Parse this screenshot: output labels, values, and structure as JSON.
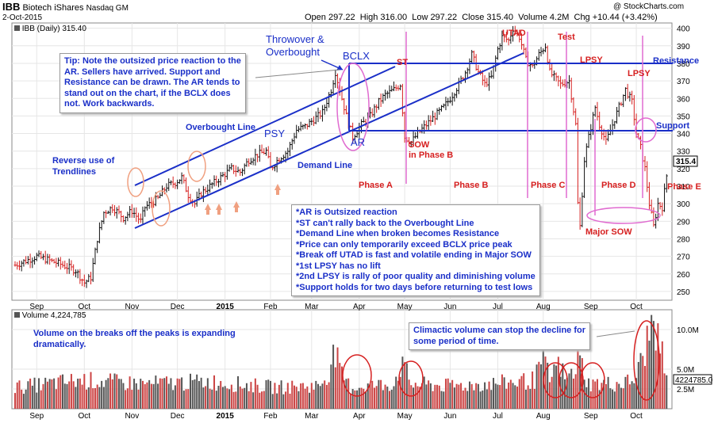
{
  "header": {
    "symbol": "IBB",
    "name": "Biotech iShares",
    "exchange": "Nasdaq GM",
    "date": "2-Oct-2015",
    "watermark": "@ StockCharts.com",
    "open": "Open 297.22",
    "high": "High 316.00",
    "low": "Low 297.22",
    "close": "Close 315.40",
    "volume": "Volume 4.2M",
    "change": "Chg +10.44 (+3.42%)",
    "legend_price": "IBB (Daily) 315.40",
    "legend_volume": "Volume 4,224,785"
  },
  "tip_box": {
    "lines": [
      "Tip: Note the outsized price reaction to the",
      "AR. Sellers have arrived. Support and",
      "Resistance can be drawn. The AR tends to",
      "stand out on the chart, if the BCLX does",
      "not. Work backwards."
    ]
  },
  "notes_box": {
    "lines": [
      "*AR is Outsized reaction",
      "*ST can't rally back to the Overbought Line",
      "*Demand Line when broken becomes Resistance",
      "*Price can only temporarily exceed BCLX price peak",
      "*Break off UTAD is fast and volatile ending in Major SOW",
      "*1st LPSY has no lift",
      "*2nd LPSY is rally of poor quality and diminishing volume",
      "*Support holds for two days before returning to test lows"
    ]
  },
  "climactic_box": {
    "lines": [
      "Climactic volume can stop the decline for",
      "some period of time."
    ]
  },
  "volume_note": {
    "lines": [
      "Volume on the breaks off the peaks is expanding",
      "dramatically."
    ]
  },
  "chart_data": {
    "type": "bar",
    "title": "IBB Biotech iShares Nasdaq GM",
    "price_axis": {
      "ylim": [
        245,
        403
      ],
      "ticks": [
        250,
        260,
        270,
        280,
        290,
        300,
        310,
        320,
        330,
        340,
        350,
        360,
        370,
        380,
        390,
        400
      ]
    },
    "volume_axis": {
      "ylim": [
        0,
        12.5
      ],
      "ticks": [
        2.5,
        5.0,
        10.0
      ],
      "tick_labels": [
        "2.5M",
        "5.0M",
        "10.0M"
      ],
      "last_label": "4224785.0"
    },
    "last_price": 315.4,
    "x_axis_labels": [
      {
        "label": "Sep",
        "t": 10
      },
      {
        "label": "Oct",
        "t": 32
      },
      {
        "label": "Nov",
        "t": 54
      },
      {
        "label": "Dec",
        "t": 75
      },
      {
        "label": "2015",
        "t": 97
      },
      {
        "label": "Feb",
        "t": 118
      },
      {
        "label": "Mar",
        "t": 137
      },
      {
        "label": "Apr",
        "t": 159
      },
      {
        "label": "May",
        "t": 180
      },
      {
        "label": "Jun",
        "t": 201
      },
      {
        "label": "Jul",
        "t": 223
      },
      {
        "label": "Aug",
        "t": 244
      },
      {
        "label": "Sep",
        "t": 266
      },
      {
        "label": "Oct",
        "t": 287
      }
    ],
    "price_anchors": [
      [
        0,
        265
      ],
      [
        10,
        270
      ],
      [
        20,
        266
      ],
      [
        28,
        262
      ],
      [
        32,
        255
      ],
      [
        35,
        258
      ],
      [
        38,
        280
      ],
      [
        41,
        295
      ],
      [
        45,
        298
      ],
      [
        50,
        292
      ],
      [
        54,
        296
      ],
      [
        58,
        290
      ],
      [
        60,
        298
      ],
      [
        66,
        303
      ],
      [
        70,
        310
      ],
      [
        74,
        312
      ],
      [
        77,
        315
      ],
      [
        80,
        305
      ],
      [
        83,
        300
      ],
      [
        86,
        306
      ],
      [
        90,
        310
      ],
      [
        95,
        315
      ],
      [
        100,
        320
      ],
      [
        104,
        318
      ],
      [
        108,
        325
      ],
      [
        112,
        328
      ],
      [
        116,
        330
      ],
      [
        118,
        320
      ],
      [
        122,
        326
      ],
      [
        126,
        330
      ],
      [
        130,
        342
      ],
      [
        134,
        344
      ],
      [
        138,
        348
      ],
      [
        142,
        352
      ],
      [
        146,
        365
      ],
      [
        148,
        375
      ],
      [
        151,
        360
      ],
      [
        153,
        350
      ],
      [
        156,
        338
      ],
      [
        160,
        345
      ],
      [
        164,
        350
      ],
      [
        168,
        358
      ],
      [
        171,
        362
      ],
      [
        175,
        365
      ],
      [
        178,
        368
      ],
      [
        180,
        338
      ],
      [
        183,
        335
      ],
      [
        186,
        340
      ],
      [
        190,
        345
      ],
      [
        194,
        350
      ],
      [
        198,
        355
      ],
      [
        201,
        360
      ],
      [
        205,
        368
      ],
      [
        208,
        375
      ],
      [
        211,
        385
      ],
      [
        214,
        375
      ],
      [
        217,
        368
      ],
      [
        220,
        372
      ],
      [
        223,
        388
      ],
      [
        225,
        395
      ],
      [
        228,
        393
      ],
      [
        230,
        400
      ],
      [
        233,
        395
      ],
      [
        236,
        382
      ],
      [
        239,
        378
      ],
      [
        242,
        385
      ],
      [
        245,
        390
      ],
      [
        247,
        375
      ],
      [
        249,
        372
      ],
      [
        252,
        368
      ],
      [
        256,
        370
      ],
      [
        259,
        345
      ],
      [
        260,
        300
      ],
      [
        261,
        287
      ],
      [
        263,
        325
      ],
      [
        265,
        338
      ],
      [
        268,
        355
      ],
      [
        270,
        345
      ],
      [
        273,
        335
      ],
      [
        276,
        345
      ],
      [
        279,
        355
      ],
      [
        282,
        365
      ],
      [
        285,
        358
      ],
      [
        287,
        340
      ],
      [
        289,
        332
      ],
      [
        291,
        320
      ],
      [
        293,
        300
      ],
      [
        295,
        287
      ],
      [
        297,
        300
      ],
      [
        299,
        298
      ],
      [
        301,
        316
      ]
    ],
    "volume_anchors": [
      [
        0,
        3.0
      ],
      [
        30,
        4.0
      ],
      [
        60,
        3.5
      ],
      [
        90,
        3.8
      ],
      [
        120,
        3.0
      ],
      [
        140,
        3.2
      ],
      [
        144,
        4.5
      ],
      [
        146,
        6.5
      ],
      [
        148,
        8.0
      ],
      [
        150,
        5.0
      ],
      [
        155,
        3.0
      ],
      [
        175,
        3.5
      ],
      [
        178,
        6.0
      ],
      [
        180,
        5.5
      ],
      [
        183,
        3.5
      ],
      [
        200,
        3.2
      ],
      [
        220,
        3.5
      ],
      [
        240,
        4.0
      ],
      [
        242,
        5.5
      ],
      [
        244,
        7.0
      ],
      [
        247,
        4.0
      ],
      [
        249,
        5.5
      ],
      [
        252,
        6.0
      ],
      [
        254,
        4.0
      ],
      [
        258,
        5.0
      ],
      [
        260,
        7.5
      ],
      [
        262,
        6.0
      ],
      [
        265,
        3.5
      ],
      [
        280,
        3.5
      ],
      [
        286,
        4.0
      ],
      [
        288,
        5.5
      ],
      [
        290,
        7.0
      ],
      [
        292,
        9.5
      ],
      [
        294,
        11.5
      ],
      [
        296,
        12.0
      ],
      [
        297,
        9.0
      ],
      [
        299,
        7.5
      ],
      [
        301,
        4.2
      ]
    ],
    "annotations": [
      "Throwover &",
      "Overbought",
      "BCLX",
      "ST",
      "AR",
      "UTAD",
      "Test",
      "LPSY",
      "LPSY",
      "Resistance",
      "Support",
      "Overbought Line",
      "PSY",
      "Demand Line",
      "Reverse use of",
      "Trendlines",
      "SOW",
      "in Phase B",
      "Phase A",
      "Phase B",
      "Phase C",
      "Phase D",
      "Phase E",
      "Major SOW"
    ]
  }
}
